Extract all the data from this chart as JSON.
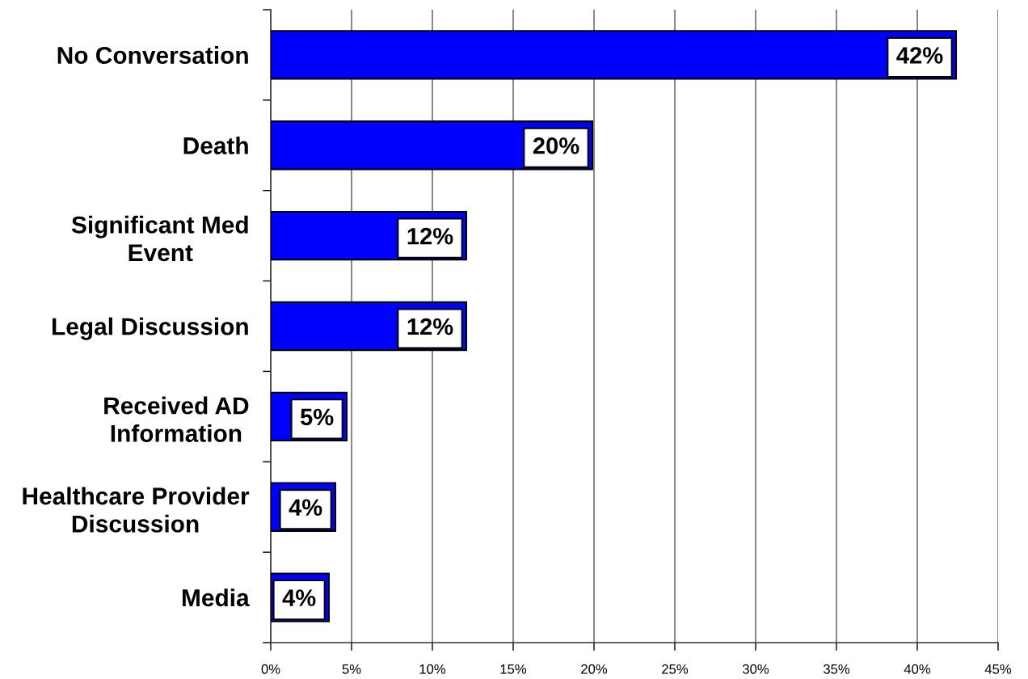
{
  "chart_data": {
    "type": "bar",
    "orientation": "horizontal",
    "categories": [
      "No Conversation",
      "Death",
      "Significant Med\nEvent",
      "Legal Discussion",
      "Received AD\nInformation",
      "Healthcare Provider\nDiscussion",
      "Media"
    ],
    "values": [
      42.4,
      19.9,
      12.1,
      12.1,
      4.7,
      4.0,
      3.6
    ],
    "color": "#0000ff",
    "value_labels": [
      "42%",
      "20%",
      "12%",
      "12%",
      "5%",
      "4%",
      "4%"
    ],
    "xlim": [
      0,
      45
    ],
    "xticks": [
      {
        "value": 0,
        "label": "0%"
      },
      {
        "value": 5,
        "label": "5%"
      },
      {
        "value": 10,
        "label": "10%"
      },
      {
        "value": 15,
        "label": "15%"
      },
      {
        "value": 20,
        "label": "20%"
      },
      {
        "value": 25,
        "label": "25%"
      },
      {
        "value": 30,
        "label": "30%"
      },
      {
        "value": 35,
        "label": "35%"
      },
      {
        "value": 40,
        "label": "40%"
      },
      {
        "value": 45,
        "label": "45%"
      }
    ],
    "grid": "x"
  }
}
